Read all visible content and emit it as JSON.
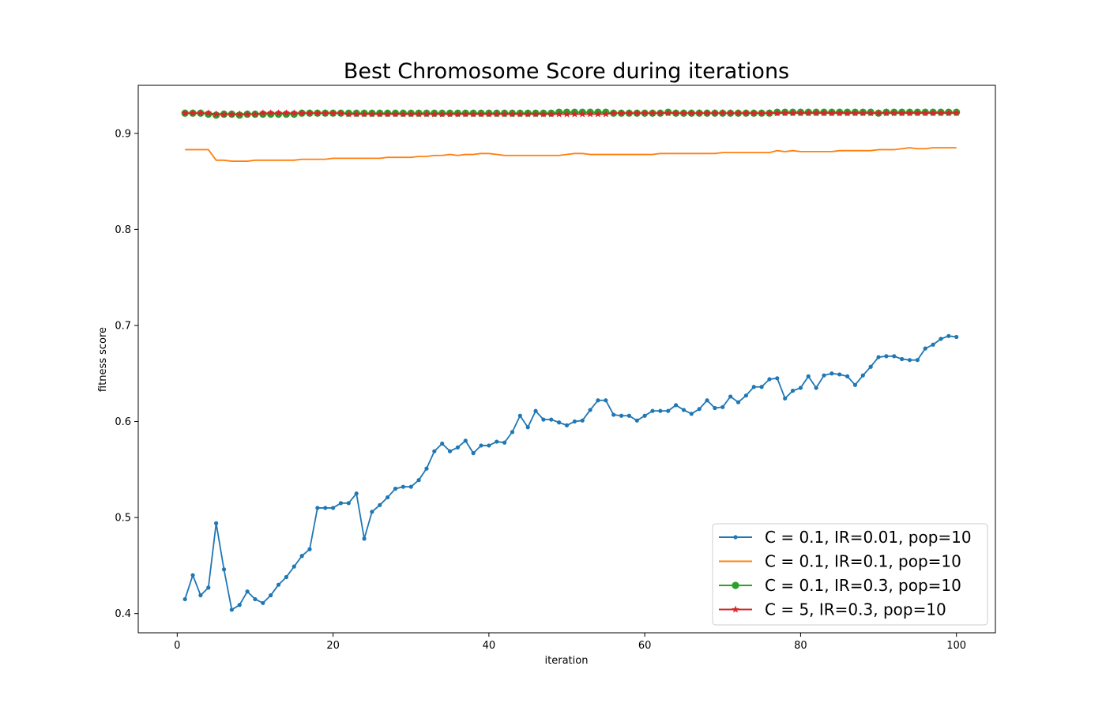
{
  "chart_data": {
    "type": "line",
    "title": "Best Chromosome Score during iterations",
    "xlabel": "iteration",
    "ylabel": "fitness score",
    "xlim": [
      -5,
      105
    ],
    "ylim": [
      0.38,
      0.95
    ],
    "xticks": [
      0,
      20,
      40,
      60,
      80,
      100
    ],
    "yticks": [
      0.4,
      0.5,
      0.6,
      0.7,
      0.8,
      0.9
    ],
    "xtick_labels": [
      "0",
      "20",
      "40",
      "60",
      "80",
      "100"
    ],
    "ytick_labels": [
      "0.4",
      "0.5",
      "0.6",
      "0.7",
      "0.8",
      "0.9"
    ],
    "grid": false,
    "legend_position": "lower-right",
    "x": [
      1,
      2,
      3,
      4,
      5,
      6,
      7,
      8,
      9,
      10,
      11,
      12,
      13,
      14,
      15,
      16,
      17,
      18,
      19,
      20,
      21,
      22,
      23,
      24,
      25,
      26,
      27,
      28,
      29,
      30,
      31,
      32,
      33,
      34,
      35,
      36,
      37,
      38,
      39,
      40,
      41,
      42,
      43,
      44,
      45,
      46,
      47,
      48,
      49,
      50,
      51,
      52,
      53,
      54,
      55,
      56,
      57,
      58,
      59,
      60,
      61,
      62,
      63,
      64,
      65,
      66,
      67,
      68,
      69,
      70,
      71,
      72,
      73,
      74,
      75,
      76,
      77,
      78,
      79,
      80,
      81,
      82,
      83,
      84,
      85,
      86,
      87,
      88,
      89,
      90,
      91,
      92,
      93,
      94,
      95,
      96,
      97,
      98,
      99,
      100
    ],
    "series": [
      {
        "name": "C = 0.1, IR=0.01, pop=10",
        "color": "#1f77b4",
        "marker": "small-dot",
        "values": [
          0.415,
          0.44,
          0.419,
          0.427,
          0.494,
          0.446,
          0.404,
          0.409,
          0.423,
          0.415,
          0.411,
          0.419,
          0.43,
          0.438,
          0.449,
          0.46,
          0.467,
          0.51,
          0.51,
          0.51,
          0.515,
          0.515,
          0.525,
          0.478,
          0.506,
          0.513,
          0.521,
          0.53,
          0.532,
          0.532,
          0.539,
          0.551,
          0.569,
          0.577,
          0.569,
          0.573,
          0.58,
          0.567,
          0.575,
          0.575,
          0.579,
          0.578,
          0.589,
          0.606,
          0.594,
          0.611,
          0.602,
          0.602,
          0.599,
          0.596,
          0.6,
          0.601,
          0.612,
          0.622,
          0.622,
          0.607,
          0.606,
          0.606,
          0.601,
          0.606,
          0.611,
          0.611,
          0.611,
          0.617,
          0.612,
          0.608,
          0.613,
          0.622,
          0.614,
          0.615,
          0.626,
          0.62,
          0.627,
          0.636,
          0.636,
          0.644,
          0.645,
          0.624,
          0.632,
          0.635,
          0.647,
          0.635,
          0.648,
          0.65,
          0.649,
          0.647,
          0.638,
          0.648,
          0.657,
          0.667,
          0.668,
          0.668,
          0.665,
          0.664,
          0.664,
          0.676,
          0.68,
          0.686,
          0.689,
          0.688
        ]
      },
      {
        "name": "C = 0.1, IR=0.1, pop=10",
        "color": "#ff7f0e",
        "marker": "none",
        "values": [
          0.883,
          0.883,
          0.883,
          0.883,
          0.872,
          0.872,
          0.871,
          0.871,
          0.871,
          0.872,
          0.872,
          0.872,
          0.872,
          0.872,
          0.872,
          0.873,
          0.873,
          0.873,
          0.873,
          0.874,
          0.874,
          0.874,
          0.874,
          0.874,
          0.874,
          0.874,
          0.875,
          0.875,
          0.875,
          0.875,
          0.876,
          0.876,
          0.877,
          0.877,
          0.878,
          0.877,
          0.878,
          0.878,
          0.879,
          0.879,
          0.878,
          0.877,
          0.877,
          0.877,
          0.877,
          0.877,
          0.877,
          0.877,
          0.877,
          0.878,
          0.879,
          0.879,
          0.878,
          0.878,
          0.878,
          0.878,
          0.878,
          0.878,
          0.878,
          0.878,
          0.878,
          0.879,
          0.879,
          0.879,
          0.879,
          0.879,
          0.879,
          0.879,
          0.879,
          0.88,
          0.88,
          0.88,
          0.88,
          0.88,
          0.88,
          0.88,
          0.882,
          0.881,
          0.882,
          0.881,
          0.881,
          0.881,
          0.881,
          0.881,
          0.882,
          0.882,
          0.882,
          0.882,
          0.882,
          0.883,
          0.883,
          0.883,
          0.884,
          0.885,
          0.884,
          0.884,
          0.885,
          0.885,
          0.885,
          0.885
        ]
      },
      {
        "name": "C = 0.1, IR=0.3, pop=10",
        "color": "#2ca02c",
        "marker": "large-dot",
        "values": [
          0.921,
          0.921,
          0.921,
          0.92,
          0.919,
          0.92,
          0.92,
          0.919,
          0.92,
          0.92,
          0.92,
          0.92,
          0.92,
          0.92,
          0.92,
          0.921,
          0.921,
          0.921,
          0.921,
          0.921,
          0.921,
          0.921,
          0.921,
          0.921,
          0.921,
          0.921,
          0.921,
          0.921,
          0.921,
          0.921,
          0.921,
          0.921,
          0.921,
          0.921,
          0.921,
          0.921,
          0.921,
          0.921,
          0.921,
          0.921,
          0.921,
          0.921,
          0.921,
          0.921,
          0.921,
          0.921,
          0.921,
          0.921,
          0.922,
          0.922,
          0.922,
          0.922,
          0.922,
          0.922,
          0.922,
          0.921,
          0.921,
          0.921,
          0.921,
          0.921,
          0.921,
          0.921,
          0.922,
          0.921,
          0.921,
          0.921,
          0.921,
          0.921,
          0.921,
          0.921,
          0.921,
          0.921,
          0.921,
          0.921,
          0.921,
          0.921,
          0.922,
          0.922,
          0.922,
          0.922,
          0.922,
          0.922,
          0.922,
          0.922,
          0.922,
          0.922,
          0.922,
          0.922,
          0.922,
          0.921,
          0.922,
          0.922,
          0.922,
          0.922,
          0.922,
          0.922,
          0.922,
          0.922,
          0.922,
          0.922
        ]
      },
      {
        "name": "C = 5, IR=0.3, pop=10",
        "color": "#d62728",
        "marker": "star",
        "values": [
          0.921,
          0.921,
          0.921,
          0.921,
          0.92,
          0.92,
          0.92,
          0.92,
          0.92,
          0.92,
          0.921,
          0.921,
          0.921,
          0.921,
          0.921,
          0.921,
          0.921,
          0.921,
          0.921,
          0.921,
          0.921,
          0.92,
          0.92,
          0.92,
          0.92,
          0.92,
          0.92,
          0.92,
          0.92,
          0.92,
          0.92,
          0.92,
          0.92,
          0.92,
          0.92,
          0.92,
          0.92,
          0.92,
          0.92,
          0.92,
          0.92,
          0.92,
          0.92,
          0.92,
          0.92,
          0.92,
          0.92,
          0.92,
          0.92,
          0.92,
          0.92,
          0.92,
          0.92,
          0.92,
          0.92,
          0.921,
          0.921,
          0.921,
          0.921,
          0.921,
          0.921,
          0.921,
          0.921,
          0.921,
          0.921,
          0.921,
          0.921,
          0.921,
          0.921,
          0.921,
          0.921,
          0.921,
          0.921,
          0.921,
          0.921,
          0.921,
          0.921,
          0.921,
          0.921,
          0.921,
          0.921,
          0.921,
          0.921,
          0.921,
          0.921,
          0.921,
          0.921,
          0.921,
          0.921,
          0.921,
          0.921,
          0.921,
          0.921,
          0.921,
          0.921,
          0.921,
          0.921,
          0.921,
          0.921,
          0.921
        ]
      }
    ]
  }
}
